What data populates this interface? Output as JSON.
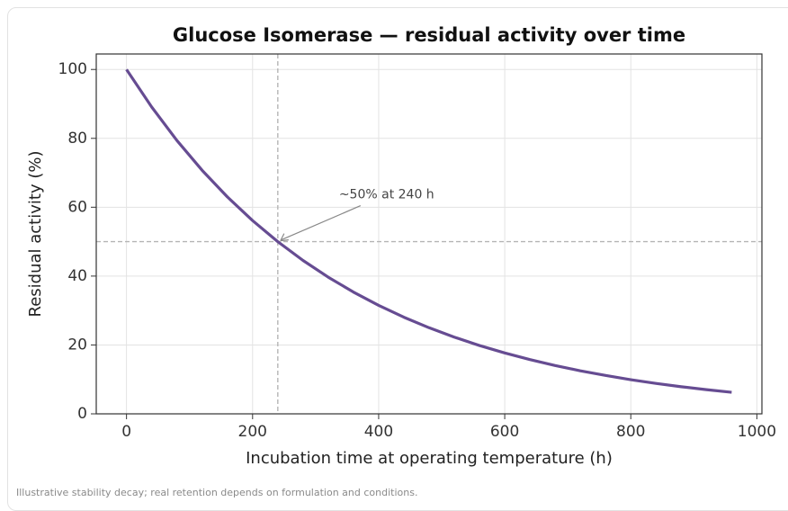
{
  "chart_data": {
    "type": "line",
    "title": "Glucose Isomerase — residual activity over time",
    "x_label": "Incubation time at operating temperature (h)",
    "y_label": "Residual activity (%)",
    "x": [
      0,
      40,
      80,
      120,
      160,
      200,
      240,
      280,
      320,
      360,
      400,
      440,
      480,
      520,
      560,
      600,
      640,
      680,
      720,
      760,
      800,
      840,
      880,
      920,
      960
    ],
    "series": [
      {
        "name": "Residual activity",
        "color": "#664c92",
        "values": [
          100,
          89.09,
          79.37,
          70.71,
          63.0,
          56.12,
          50,
          44.54,
          39.69,
          35.36,
          31.5,
          28.06,
          25,
          22.27,
          19.84,
          17.68,
          15.75,
          14.03,
          12.5,
          11.14,
          9.92,
          8.84,
          7.87,
          7.02,
          6.25
        ]
      }
    ],
    "xlim": [
      -48,
      1008
    ],
    "ylim": [
      0,
      104.5
    ],
    "xticks": [
      0,
      200,
      400,
      600,
      800,
      1000
    ],
    "yticks": [
      0,
      20,
      40,
      60,
      80,
      100
    ],
    "grid": true,
    "reference_lines": {
      "x": 240,
      "y": 50
    },
    "annotation": {
      "text": "~50% at 240 h",
      "x": 240,
      "y": 50
    }
  },
  "footnote": "Illustrative stability decay; real retention depends on formulation and conditions."
}
